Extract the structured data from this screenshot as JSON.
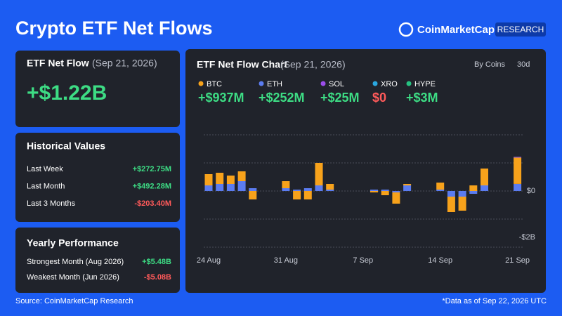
{
  "header": {
    "title": "Crypto ETF Net Flows",
    "brand": "CoinMarketCap",
    "badge": "RESEARCH"
  },
  "net_flow": {
    "title": "ETF Net Flow",
    "date": "(Sep 21, 2026)",
    "value": "+$1.22B"
  },
  "historical": {
    "title": "Historical Values",
    "rows": [
      {
        "label": "Last Week",
        "value": "+$272.75M"
      },
      {
        "label": "Last Month",
        "value": "+$492.28M"
      },
      {
        "label": "Last 3 Months",
        "value": "-$203.40M"
      }
    ]
  },
  "yearly": {
    "title": "Yearly Performance",
    "rows": [
      {
        "label": "Strongest Month (Aug 2026)",
        "value": "+$5.48B"
      },
      {
        "label": "Weakest Month (Jun 2026)",
        "value": "-$5.08B"
      }
    ]
  },
  "footer": {
    "source": "Source: CoinMarketCap Research",
    "note": "*Data as of Sep 22, 2026 UTC"
  },
  "chart_data": {
    "type": "bar",
    "stacked": true,
    "title": "ETF Net Flow Chart",
    "subtitle": "(Sep 21, 2026)",
    "controls": [
      "By Coins",
      "30d"
    ],
    "categories": [
      "24 Aug",
      null,
      null,
      null,
      null,
      null,
      null,
      "31 Aug",
      null,
      null,
      null,
      null,
      null,
      null,
      "7 Sep",
      null,
      null,
      null,
      null,
      null,
      null,
      "14 Sep",
      null,
      null,
      null,
      null,
      null,
      null,
      "21 Sep"
    ],
    "series": [
      {
        "name": "BTC",
        "color": "#f7a21b",
        "total": 0.937,
        "total_label": "+$937M",
        "values": [
          0.4,
          0.4,
          0.3,
          0.35,
          -0.3,
          0,
          0,
          0.25,
          -0.3,
          -0.3,
          0.8,
          0.2,
          0,
          0,
          0,
          -0.05,
          -0.15,
          -0.4,
          0.05,
          0,
          0,
          0.25,
          -0.55,
          -0.5,
          0.2,
          0.6,
          0,
          0,
          0.937
        ]
      },
      {
        "name": "ETH",
        "color": "#5b7cf0",
        "total": 0.252,
        "total_label": "+$252M",
        "values": [
          0.2,
          0.25,
          0.25,
          0.35,
          0.1,
          0,
          0,
          0.1,
          0.05,
          0.1,
          0.2,
          0.05,
          0,
          0,
          0,
          0.05,
          0.05,
          -0.05,
          0.2,
          0,
          0,
          0.05,
          -0.2,
          -0.2,
          -0.1,
          0.2,
          0,
          0,
          0.252
        ]
      },
      {
        "name": "SOL",
        "color": "#9b4dea",
        "total": 0.025,
        "total_label": "+$25M",
        "values": [
          0,
          0,
          0,
          0,
          0,
          0,
          0,
          0,
          0,
          0,
          0,
          0,
          0,
          0,
          0,
          0,
          0,
          0,
          0,
          0,
          0,
          0,
          0,
          0,
          0,
          0,
          0,
          0,
          0.025
        ]
      },
      {
        "name": "XRO",
        "color": "#2aa7e0",
        "total": 0,
        "total_label": "$0",
        "values": [
          0,
          0,
          0,
          0,
          0,
          0,
          0,
          0,
          0,
          0,
          0,
          0,
          0,
          0,
          0,
          0,
          0,
          0,
          0,
          0,
          0,
          0,
          0,
          0,
          0,
          0,
          0,
          0,
          0
        ]
      },
      {
        "name": "HYPE",
        "color": "#26c281",
        "total": 0.003,
        "total_label": "+$3M",
        "values": [
          0,
          0,
          0,
          0,
          0,
          0,
          0,
          0,
          0,
          0,
          0,
          0,
          0,
          0,
          0,
          0,
          0,
          0,
          0,
          0,
          0,
          0,
          0,
          0,
          0,
          0,
          0,
          0,
          0.003
        ]
      }
    ],
    "ylim": [
      -2.2,
      2.2
    ],
    "yticks": [
      {
        "value": 2,
        "label": null
      },
      {
        "value": 1,
        "label": null
      },
      {
        "value": 0,
        "label": "$0"
      },
      {
        "value": -1,
        "label": null
      },
      {
        "value": -2,
        "label": "-$2B"
      }
    ],
    "grid": true
  }
}
